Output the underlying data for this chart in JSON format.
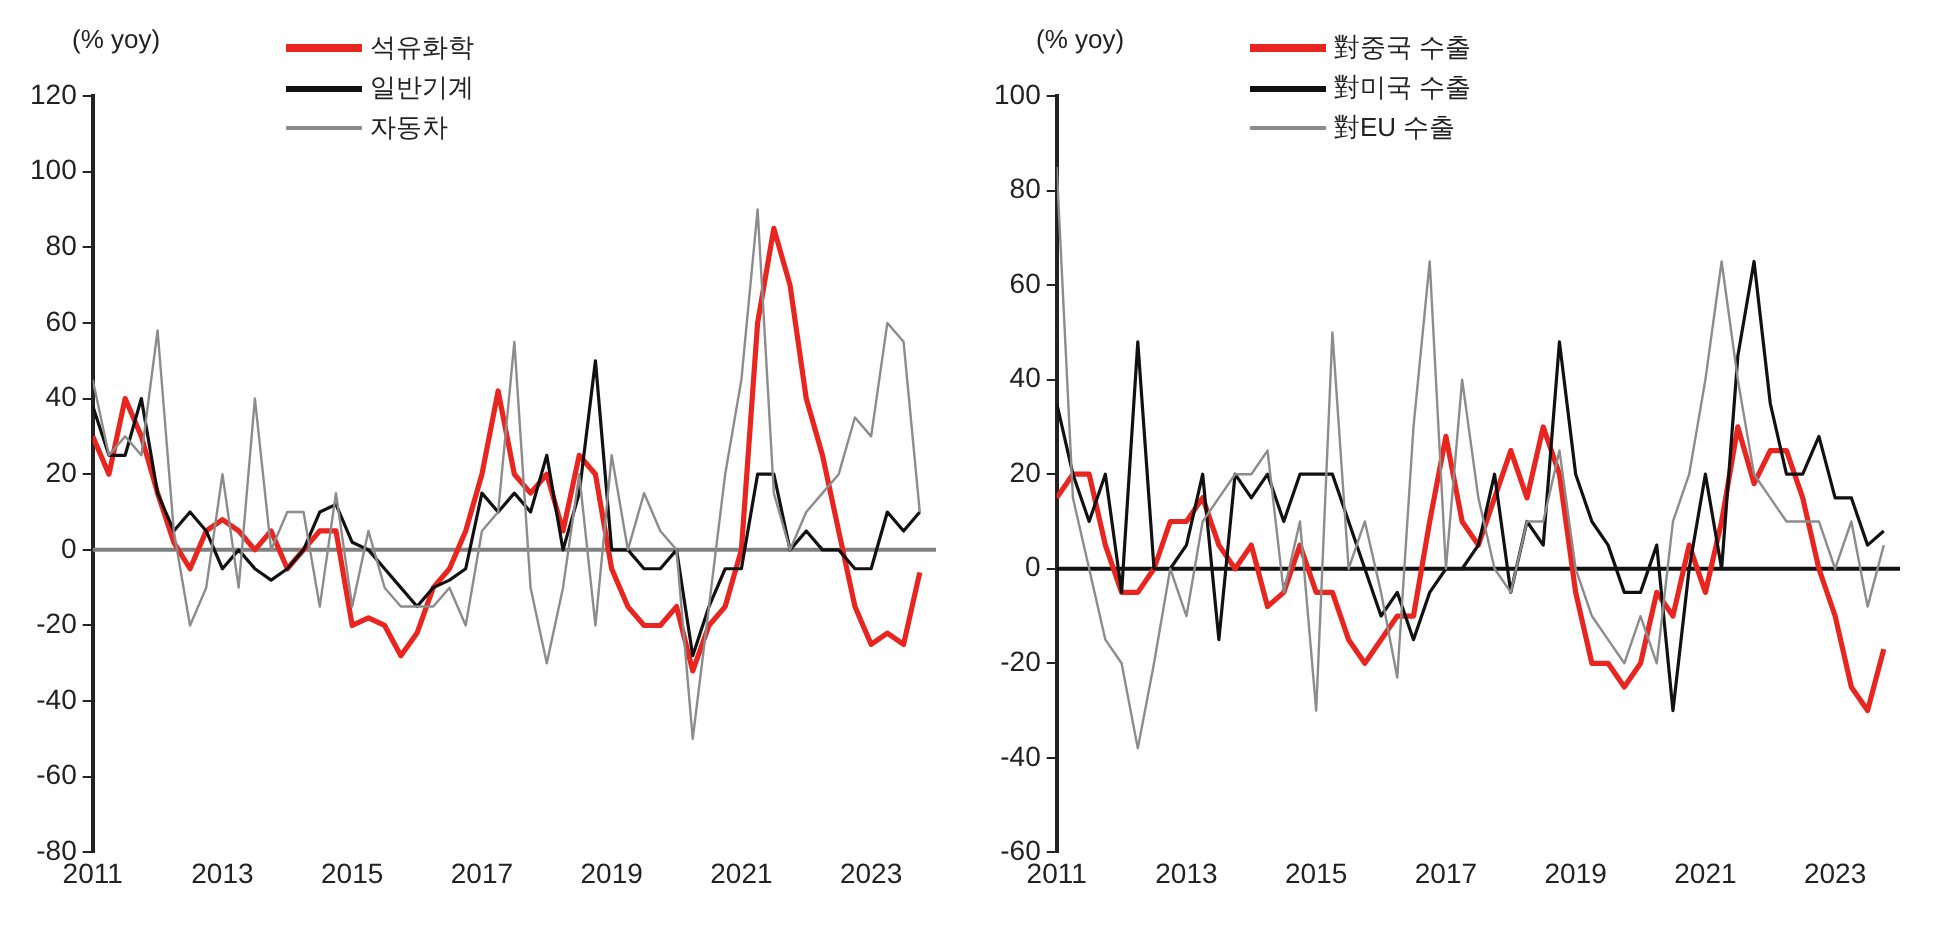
{
  "chart_data": [
    {
      "type": "line",
      "ylabel": "(% yoy)",
      "legend": "top left",
      "grid": false,
      "xlim": [
        2011,
        2024
      ],
      "xticks": [
        2011,
        2013,
        2015,
        2017,
        2019,
        2021,
        2023
      ],
      "ylim": [
        -80,
        120
      ],
      "yticks": [
        -80,
        -60,
        -40,
        -20,
        0,
        20,
        40,
        60,
        80,
        100,
        120
      ],
      "ref_lines": [
        {
          "axis": "y",
          "value": 0,
          "color": "#808080"
        }
      ],
      "x": [
        2011,
        2011.25,
        2011.5,
        2011.75,
        2012,
        2012.25,
        2012.5,
        2012.75,
        2013,
        2013.25,
        2013.5,
        2013.75,
        2014,
        2014.25,
        2014.5,
        2014.75,
        2015,
        2015.25,
        2015.5,
        2015.75,
        2016,
        2016.25,
        2016.5,
        2016.75,
        2017,
        2017.25,
        2017.5,
        2017.75,
        2018,
        2018.25,
        2018.5,
        2018.75,
        2019,
        2019.25,
        2019.5,
        2019.75,
        2020,
        2020.25,
        2020.5,
        2020.75,
        2021,
        2021.25,
        2021.5,
        2021.75,
        2022,
        2022.25,
        2022.5,
        2022.75,
        2023,
        2023.25,
        2023.5,
        2023.75
      ],
      "series": [
        {
          "name": "석유화학",
          "color": "#e8251f",
          "values": [
            30,
            20,
            40,
            30,
            15,
            2,
            -5,
            5,
            8,
            5,
            0,
            5,
            -5,
            0,
            5,
            5,
            -20,
            -18,
            -20,
            -28,
            -22,
            -10,
            -5,
            5,
            20,
            42,
            20,
            15,
            20,
            5,
            25,
            20,
            -5,
            -15,
            -20,
            -20,
            -15,
            -32,
            -20,
            -15,
            0,
            60,
            85,
            70,
            40,
            25,
            5,
            -15,
            -25,
            -22,
            -25,
            -6
          ]
        },
        {
          "name": "일반기계",
          "color": "#111111",
          "values": [
            38,
            25,
            25,
            40,
            15,
            5,
            10,
            5,
            -5,
            0,
            -5,
            -8,
            -5,
            0,
            10,
            12,
            2,
            0,
            -5,
            -10,
            -15,
            -10,
            -8,
            -5,
            15,
            10,
            15,
            10,
            25,
            0,
            15,
            50,
            0,
            0,
            -5,
            -5,
            0,
            -28,
            -15,
            -5,
            -5,
            20,
            20,
            0,
            5,
            0,
            0,
            -5,
            -5,
            10,
            5,
            10
          ]
        },
        {
          "name": "자동차",
          "color": "#8c8c8c",
          "values": [
            45,
            25,
            30,
            25,
            58,
            5,
            -20,
            -10,
            20,
            -10,
            40,
            0,
            10,
            10,
            -15,
            15,
            -15,
            5,
            -10,
            -15,
            -15,
            -15,
            -10,
            -20,
            5,
            10,
            55,
            -10,
            -30,
            -10,
            20,
            -20,
            25,
            0,
            15,
            5,
            0,
            -50,
            -15,
            20,
            45,
            90,
            15,
            0,
            10,
            15,
            20,
            35,
            30,
            60,
            55,
            10
          ]
        }
      ]
    },
    {
      "type": "line",
      "ylabel": "(% yoy)",
      "legend": "top left",
      "grid": false,
      "xlim": [
        2011,
        2024
      ],
      "xticks": [
        2011,
        2013,
        2015,
        2017,
        2019,
        2021,
        2023
      ],
      "ylim": [
        -60,
        100
      ],
      "yticks": [
        -60,
        -40,
        -20,
        0,
        20,
        40,
        60,
        80,
        100
      ],
      "ref_lines": [
        {
          "axis": "y",
          "value": 0,
          "color": "#111111"
        }
      ],
      "x": [
        2011,
        2011.25,
        2011.5,
        2011.75,
        2012,
        2012.25,
        2012.5,
        2012.75,
        2013,
        2013.25,
        2013.5,
        2013.75,
        2014,
        2014.25,
        2014.5,
        2014.75,
        2015,
        2015.25,
        2015.5,
        2015.75,
        2016,
        2016.25,
        2016.5,
        2016.75,
        2017,
        2017.25,
        2017.5,
        2017.75,
        2018,
        2018.25,
        2018.5,
        2018.75,
        2019,
        2019.25,
        2019.5,
        2019.75,
        2020,
        2020.25,
        2020.5,
        2020.75,
        2021,
        2021.25,
        2021.5,
        2021.75,
        2022,
        2022.25,
        2022.5,
        2022.75,
        2023,
        2023.25,
        2023.5,
        2023.75
      ],
      "series": [
        {
          "name": "對중국 수출",
          "color": "#e8251f",
          "values": [
            15,
            20,
            20,
            5,
            -5,
            -5,
            0,
            10,
            10,
            15,
            5,
            0,
            5,
            -8,
            -5,
            5,
            -5,
            -5,
            -15,
            -20,
            -15,
            -10,
            -10,
            10,
            28,
            10,
            5,
            15,
            25,
            15,
            30,
            20,
            -5,
            -20,
            -20,
            -25,
            -20,
            -5,
            -10,
            5,
            -5,
            10,
            30,
            18,
            25,
            25,
            15,
            0,
            -10,
            -25,
            -30,
            -17
          ]
        },
        {
          "name": "對미국 수출",
          "color": "#111111",
          "values": [
            35,
            20,
            10,
            20,
            -5,
            48,
            0,
            0,
            5,
            20,
            -15,
            20,
            15,
            20,
            10,
            20,
            20,
            20,
            10,
            0,
            -10,
            -5,
            -15,
            -5,
            0,
            0,
            5,
            20,
            -5,
            10,
            5,
            48,
            20,
            10,
            5,
            -5,
            -5,
            5,
            -30,
            0,
            20,
            0,
            45,
            65,
            35,
            20,
            20,
            28,
            15,
            15,
            5,
            8
          ]
        },
        {
          "name": "對EU 수출",
          "color": "#8c8c8c",
          "values": [
            85,
            15,
            0,
            -15,
            -20,
            -38,
            -20,
            0,
            -10,
            10,
            15,
            20,
            20,
            25,
            -5,
            10,
            -30,
            50,
            0,
            10,
            -5,
            -23,
            30,
            65,
            0,
            40,
            15,
            0,
            -5,
            10,
            10,
            25,
            0,
            -10,
            -15,
            -20,
            -10,
            -20,
            10,
            20,
            40,
            65,
            40,
            20,
            15,
            10,
            10,
            10,
            0,
            10,
            -8,
            5
          ]
        }
      ]
    }
  ]
}
